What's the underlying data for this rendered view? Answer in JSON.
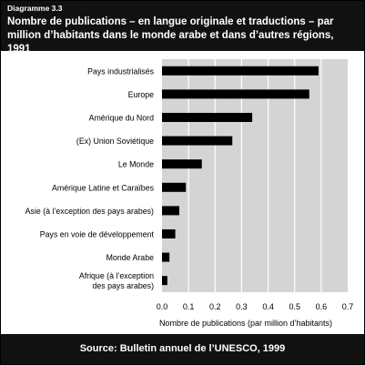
{
  "header": {
    "label": "Diagramme 3.3",
    "title": "Nombre de publications – en langue originale et traductions – par million d’habitants dans le monde arabe et dans d’autres régions, 1991"
  },
  "footer": {
    "source": "Source: Bulletin annuel de l’UNESCO, 1999"
  },
  "colors": {
    "header_bg": "#111111",
    "plot_bg": "#d4d4d4",
    "bar": "#000000",
    "grid": "#ffffff"
  },
  "chart_data": {
    "type": "bar",
    "orientation": "horizontal",
    "categories": [
      "Pays industrialisés",
      "Europe",
      "Amérique du Nord",
      "(Ex) Union Soviétique",
      "Le Monde",
      "Amérique Latine et Caraïbes",
      "Asie (à l’exception des pays arabes)",
      "Pays en voie de développement",
      "Monde Arabe",
      "Afrique (à l’exception des pays arabes)"
    ],
    "category_lines": [
      [
        "Pays industrialisés"
      ],
      [
        "Europe"
      ],
      [
        "Amérique du Nord"
      ],
      [
        "(Ex) Union Soviétique"
      ],
      [
        "Le Monde"
      ],
      [
        "Amérique Latine et Caraïbes"
      ],
      [
        "Asie (à l’exception des pays arabes)"
      ],
      [
        "Pays en voie de développement"
      ],
      [
        "Monde Arabe"
      ],
      [
        "Afrique (à l’exception",
        "des pays arabes)"
      ]
    ],
    "values": [
      0.59,
      0.555,
      0.34,
      0.265,
      0.15,
      0.09,
      0.065,
      0.05,
      0.028,
      0.02
    ],
    "xlabel": "Nombre de publications (par million d’habitants)",
    "xlim": [
      0,
      0.7
    ],
    "xticks": [
      "0.0",
      "0.1",
      "0.2",
      "0.3",
      "0.4",
      "0.5",
      "0.6",
      "0.7"
    ],
    "grid": "vertical"
  }
}
